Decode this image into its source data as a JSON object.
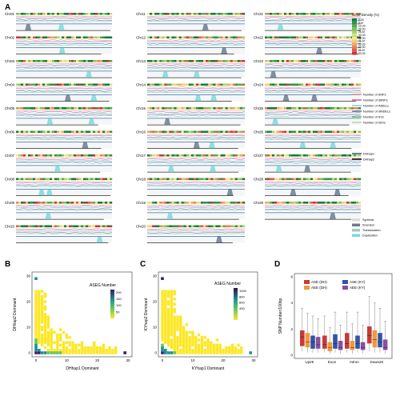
{
  "panel_labels": [
    "A",
    "B",
    "C",
    "D"
  ],
  "panel_a": {
    "chromosomes": [
      [
        "Chr01",
        "Chr11",
        "Chr21"
      ],
      [
        "Chr02",
        "Chr12",
        "Chr22"
      ],
      [
        "Chr03",
        "Chr13",
        "Chr23"
      ],
      [
        "Chr04",
        "Chr14",
        "Chr24"
      ],
      [
        "Chr05",
        "Chr15",
        "Chr25"
      ],
      [
        "Chr06",
        "Chr16",
        "Chr26"
      ],
      [
        "Chr07",
        "Chr17",
        "Chr27"
      ],
      [
        "Chr08",
        "Chr18",
        "Chr28"
      ],
      [
        "Chr09",
        "Chr19",
        "Chr29"
      ],
      [
        "Chr10",
        "Chr20",
        ""
      ]
    ],
    "gene_density_legend": {
      "title": "Gene Density (%)",
      "ticks": [
        "0.00",
        "6.67",
        "13.33",
        "20.00",
        "26.67",
        "33.33",
        "40.00",
        "46.67",
        "53.33",
        "60.00",
        "66.67",
        "73.33"
      ],
      "colors": [
        "#1a7a3a",
        "#2f9443",
        "#56ad4c",
        "#7fc35a",
        "#a9d56b",
        "#d3e584",
        "#f3e98f",
        "#f7cc77",
        "#f4a462",
        "#ef7d52",
        "#e6574a",
        "#c8343f"
      ]
    },
    "track_legend": [
      {
        "label": "Number of SNPs",
        "color": "#e7706f"
      },
      {
        "label": "Number of dSNPs",
        "color": "#a64a8e"
      },
      {
        "label": "Number of INDELs",
        "color": "#74b0d8"
      },
      {
        "label": "Number of dINDELs",
        "color": "#3a4f9a"
      },
      {
        "label": "Number of SVs",
        "color": "#58ae57"
      },
      {
        "label": "Number of dSVs",
        "color": "#9ad28a"
      }
    ],
    "haplotype_legend": [
      {
        "label": "DHhap1",
        "color": "#2a64b4"
      },
      {
        "label": "DHhap2",
        "color": "#111111"
      }
    ],
    "sv_legend": [
      {
        "label": "Syntenic",
        "color": "#dcdcdc"
      },
      {
        "label": "Inversion",
        "color": "#6b7b8f"
      },
      {
        "label": "Translocation",
        "color": "#9ec8c8"
      },
      {
        "label": "Duplication",
        "color": "#7ed7d9"
      }
    ]
  },
  "chart_data": [
    {
      "type": "heatmap",
      "panel": "B",
      "xlabel": "DHhap1 Dominant",
      "ylabel": "DHhap2 Dominant",
      "xlim": [
        0,
        30
      ],
      "ylim": [
        0,
        30
      ],
      "xticks": [
        "0",
        "10",
        "20",
        "30"
      ],
      "yticks": [
        "0",
        "10",
        "20",
        "30"
      ],
      "colorbar_title": "ASEG Number",
      "colorbar_ticks": [
        "200",
        "150",
        "100",
        "50"
      ],
      "colorbar_range": [
        0,
        220
      ],
      "points": [
        {
          "x": 0,
          "y": 0,
          "v": 210
        },
        {
          "x": 1,
          "y": 0,
          "v": 150
        },
        {
          "x": 0,
          "y": 1,
          "v": 140
        },
        {
          "x": 2,
          "y": 0,
          "v": 120
        },
        {
          "x": 0,
          "y": 2,
          "v": 110
        },
        {
          "x": 1,
          "y": 1,
          "v": 100
        },
        {
          "x": 3,
          "y": 0,
          "v": 90
        },
        {
          "x": 0,
          "y": 3,
          "v": 80
        },
        {
          "x": 4,
          "y": 0,
          "v": 70
        },
        {
          "x": 0,
          "y": 4,
          "v": 65
        },
        {
          "x": 5,
          "y": 0,
          "v": 55
        },
        {
          "x": 0,
          "y": 5,
          "v": 50
        },
        {
          "x": 6,
          "y": 0,
          "v": 45
        },
        {
          "x": 7,
          "y": 0,
          "v": 40
        },
        {
          "x": 8,
          "y": 0,
          "v": 35
        },
        {
          "x": 29,
          "y": 0,
          "v": 150
        },
        {
          "x": 0,
          "y": 29,
          "v": 120
        }
      ],
      "scatter_density": "dense yellow cloud near both axes, thinning toward upper right"
    },
    {
      "type": "heatmap",
      "panel": "C",
      "xlabel": "KYhap1 Dominant",
      "ylabel": "KYhap2 Dominant",
      "xlim": [
        0,
        30
      ],
      "ylim": [
        0,
        30
      ],
      "xticks": [
        "0",
        "10",
        "20",
        "30"
      ],
      "yticks": [
        "0",
        "10",
        "20",
        "30"
      ],
      "colorbar_title": "ASEG Number",
      "colorbar_ticks": [
        "1000",
        "800",
        "600",
        "400"
      ],
      "colorbar_range": [
        0,
        1100
      ],
      "points": [
        {
          "x": 0,
          "y": 0,
          "v": 1050
        },
        {
          "x": 1,
          "y": 0,
          "v": 700
        },
        {
          "x": 0,
          "y": 1,
          "v": 650
        },
        {
          "x": 2,
          "y": 0,
          "v": 520
        },
        {
          "x": 0,
          "y": 2,
          "v": 500
        },
        {
          "x": 1,
          "y": 1,
          "v": 450
        },
        {
          "x": 3,
          "y": 0,
          "v": 400
        },
        {
          "x": 0,
          "y": 3,
          "v": 380
        },
        {
          "x": 4,
          "y": 0,
          "v": 330
        },
        {
          "x": 29,
          "y": 0,
          "v": 650
        },
        {
          "x": 0,
          "y": 29,
          "v": 900
        }
      ]
    },
    {
      "type": "box",
      "panel": "D",
      "ylabel": "SNP Number/100bp",
      "ylim": [
        0,
        6
      ],
      "yticks": [
        "0",
        "2",
        "4",
        "6"
      ],
      "categories": [
        "Up2K",
        "Exon",
        "Intron",
        "Down2K"
      ],
      "legend": [
        {
          "name": "ASE (DH)",
          "color": "#c83a36"
        },
        {
          "name": "ASE (KY)",
          "color": "#2f55a5"
        },
        {
          "name": "AEE (DH)",
          "color": "#ef9a3c"
        },
        {
          "name": "AEE (KY)",
          "color": "#8a4fa0"
        }
      ],
      "series_order": [
        "ASE (DH)",
        "AEE (DH)",
        "ASE (KY)",
        "AEE (KY)"
      ],
      "boxes": [
        [
          [
            0.3,
            0.7,
            1.4,
            1.9,
            3.6
          ],
          [
            0.2,
            0.6,
            1.0,
            1.7,
            3.2
          ],
          [
            0.2,
            0.5,
            1.0,
            1.5,
            3.0
          ],
          [
            0.2,
            0.5,
            0.8,
            1.4,
            2.8
          ]
        ],
        [
          [
            0.2,
            0.5,
            0.8,
            1.5,
            3.0
          ],
          [
            0.1,
            0.3,
            0.6,
            1.0,
            2.1
          ],
          [
            0.2,
            0.5,
            0.9,
            1.6,
            3.3
          ],
          [
            0.1,
            0.4,
            0.6,
            1.1,
            2.3
          ]
        ],
        [
          [
            0.2,
            0.5,
            0.9,
            1.7,
            3.3
          ],
          [
            0.1,
            0.4,
            0.6,
            1.1,
            2.4
          ],
          [
            0.2,
            0.5,
            0.9,
            1.5,
            3.3
          ],
          [
            0.1,
            0.4,
            0.6,
            1.0,
            2.3
          ]
        ],
        [
          [
            0.3,
            0.9,
            1.5,
            2.2,
            4.5
          ],
          [
            0.2,
            0.6,
            1.2,
            1.9,
            4.0
          ],
          [
            0.2,
            0.6,
            1.0,
            1.7,
            3.6
          ],
          [
            0.1,
            0.4,
            0.6,
            1.2,
            2.6
          ]
        ]
      ]
    }
  ]
}
